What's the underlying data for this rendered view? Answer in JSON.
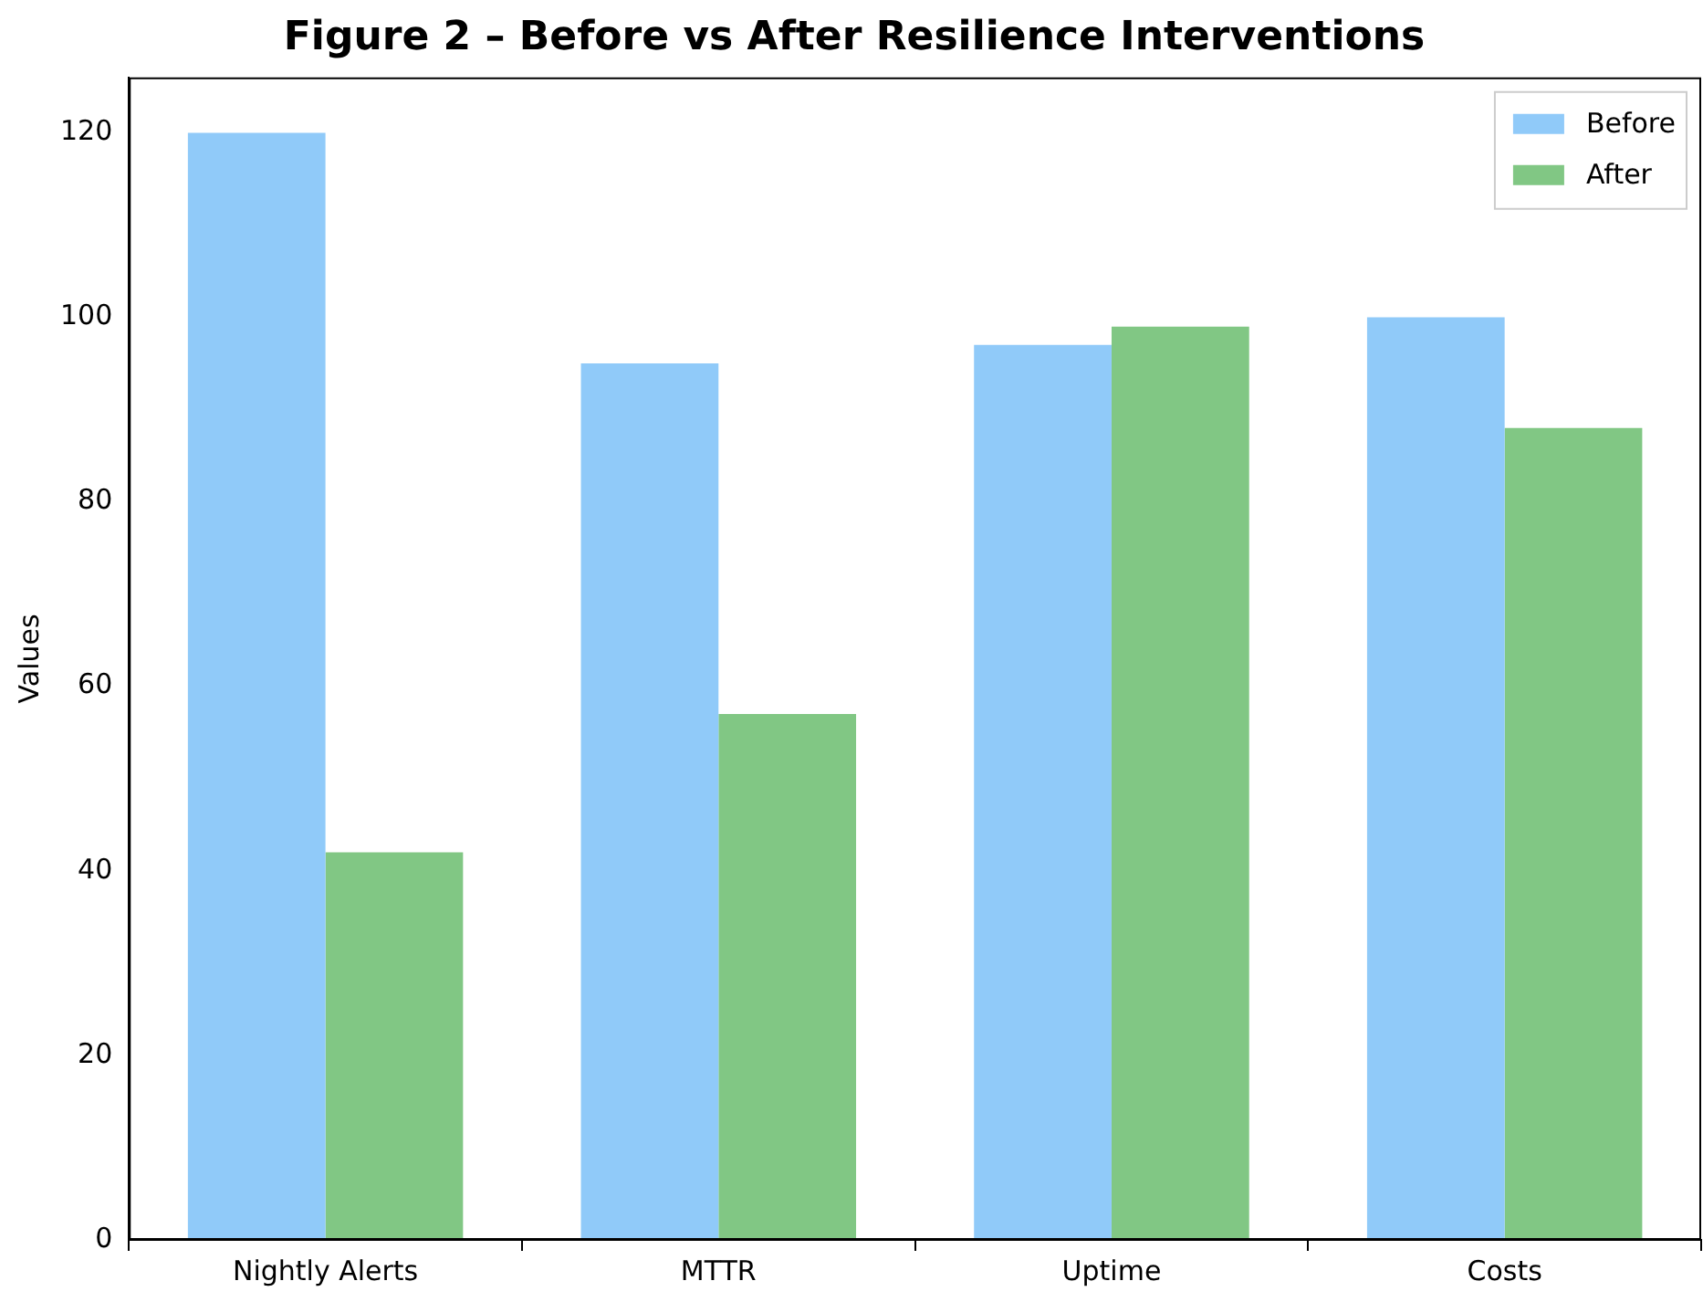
{
  "chart_data": {
    "type": "bar",
    "title": "Figure 2 – Before vs After Resilience Interventions",
    "ylabel": "Values",
    "categories": [
      "Nightly Alerts",
      "MTTR",
      "Uptime",
      "Costs"
    ],
    "series": [
      {
        "name": "Before",
        "color": "#90caf9",
        "values": [
          120,
          95,
          97,
          100
        ]
      },
      {
        "name": "After",
        "color": "#81c784",
        "values": [
          42,
          57,
          99,
          88
        ]
      }
    ],
    "ylim": [
      0,
      126
    ],
    "yticks": [
      0,
      20,
      40,
      60,
      80,
      100,
      120
    ],
    "grid": false,
    "legend": "top right"
  }
}
